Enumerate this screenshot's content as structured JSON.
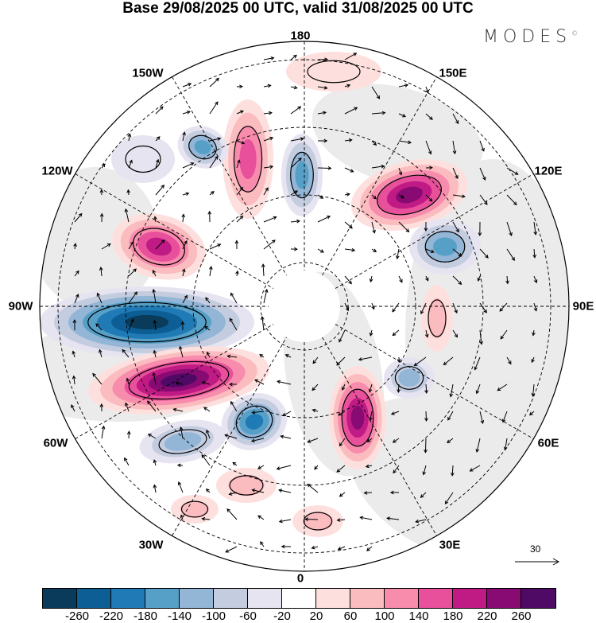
{
  "title": "Base 29/08/2025 00 UTC, valid 31/08/2025 00 UTC",
  "logo": {
    "text": "MODES",
    "mark": "©"
  },
  "longitude_labels": {
    "n180": "180",
    "e150": "150E",
    "e120": "120E",
    "e90": "90E",
    "e60": "60E",
    "e30": "30E",
    "zero": "0",
    "w30": "30W",
    "w60": "60W",
    "w90": "90W",
    "w120": "120W",
    "w150": "150W"
  },
  "reference_vector": {
    "label": "30"
  },
  "colorbar": {
    "colors": [
      "#0b3b5a",
      "#0d5e94",
      "#1f7ab5",
      "#56a0c8",
      "#93b5d6",
      "#c4cde0",
      "#e6e4f0",
      "#ffffff",
      "#fde0de",
      "#fbbcc0",
      "#f88cad",
      "#e8509b",
      "#c01b85",
      "#880a73",
      "#4e0a64"
    ],
    "ticks": [
      "-260",
      "-220",
      "-180",
      "-140",
      "-100",
      "-60",
      "-20",
      "20",
      "60",
      "100",
      "140",
      "180",
      "220",
      "260"
    ]
  }
}
